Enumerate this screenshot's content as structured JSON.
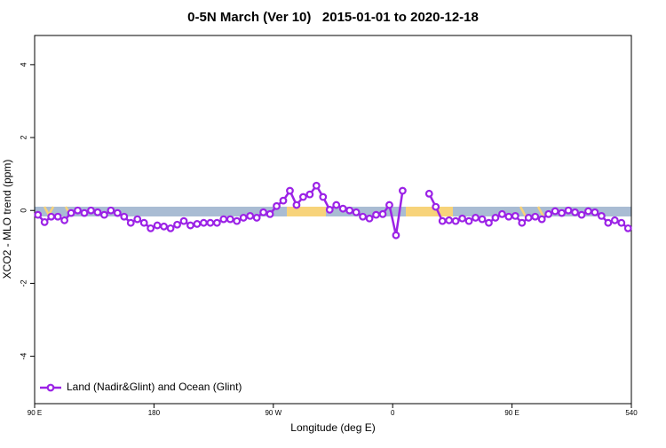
{
  "chart_data": {
    "type": "line",
    "title": "0-5N March (Ver 10)   2015-01-01 to 2020-12-18",
    "x_label": "Longitude (deg E)",
    "y_label": "XCO2 - MLO trend (ppm)",
    "x": [
      92.5,
      97.5,
      102.5,
      107.5,
      112.5,
      117.5,
      122.5,
      127.5,
      132.5,
      137.5,
      142.5,
      147.5,
      152.5,
      157.5,
      162.5,
      167.5,
      172.5,
      177.5,
      182.5,
      187.5,
      192.5,
      197.5,
      202.5,
      207.5,
      212.5,
      217.5,
      222.5,
      227.5,
      232.5,
      237.5,
      242.5,
      247.5,
      252.5,
      257.5,
      262.5,
      267.5,
      272.5,
      277.5,
      282.5,
      287.5,
      292.5,
      297.5,
      302.5,
      307.5,
      312.5,
      317.5,
      322.5,
      327.5,
      332.5,
      337.5,
      342.5,
      347.5,
      352.5,
      357.5,
      362.5,
      367.5,
      372.5,
      377.5,
      382.5,
      387.5,
      392.5,
      397.5,
      402.5,
      407.5,
      412.5,
      417.5,
      422.5,
      427.5,
      432.5,
      437.5,
      442.5,
      447.5,
      452.5,
      457.5,
      462.5,
      467.5,
      472.5,
      477.5,
      482.5,
      487.5,
      492.5,
      497.5,
      502.5,
      507.5,
      512.5,
      517.5,
      522.5,
      527.5,
      532.5,
      537.5
    ],
    "xlim": [
      90,
      540
    ],
    "xticks": [
      {
        "value": 90,
        "label": "90 E"
      },
      180,
      {
        "value": 270,
        "label": "90 W"
      },
      {
        "value": 360,
        "label": "0"
      },
      {
        "value": 450,
        "label": "90 E"
      },
      540
    ],
    "ylim": [
      -5.3,
      4.8
    ],
    "yticks": [
      -4,
      -2,
      0,
      2,
      4
    ],
    "legend": "bottom-left",
    "series": [
      {
        "name": "Land (Nadir&Glint) and Ocean (Glint)",
        "color": "#9b22e6",
        "values": [
          -0.12,
          -0.32,
          -0.17,
          -0.17,
          -0.27,
          -0.07,
          0,
          -0.07,
          0,
          -0.05,
          -0.12,
          0,
          -0.07,
          -0.17,
          -0.34,
          -0.24,
          -0.34,
          -0.49,
          -0.41,
          -0.44,
          -0.49,
          -0.39,
          -0.29,
          -0.41,
          -0.37,
          -0.34,
          -0.34,
          -0.34,
          -0.24,
          -0.24,
          -0.29,
          -0.2,
          -0.15,
          -0.2,
          -0.05,
          -0.1,
          0.12,
          0.27,
          0.54,
          0.15,
          0.37,
          0.44,
          0.68,
          0.37,
          0.02,
          0.15,
          0.05,
          0,
          -0.05,
          -0.17,
          -0.22,
          -0.12,
          -0.1,
          0.15,
          -0.68,
          0.54,
          null,
          null,
          null,
          0.46,
          0.1,
          -0.29,
          -0.27,
          -0.29,
          -0.22,
          -0.29,
          -0.2,
          -0.24,
          -0.34,
          -0.2,
          -0.1,
          -0.17,
          -0.15,
          -0.34,
          -0.2,
          -0.17,
          -0.24,
          -0.1,
          -0.02,
          -0.07,
          0,
          -0.05,
          -0.12,
          -0.02,
          -0.05,
          -0.15,
          -0.34,
          -0.27,
          -0.34,
          -0.49
        ]
      }
    ]
  }
}
